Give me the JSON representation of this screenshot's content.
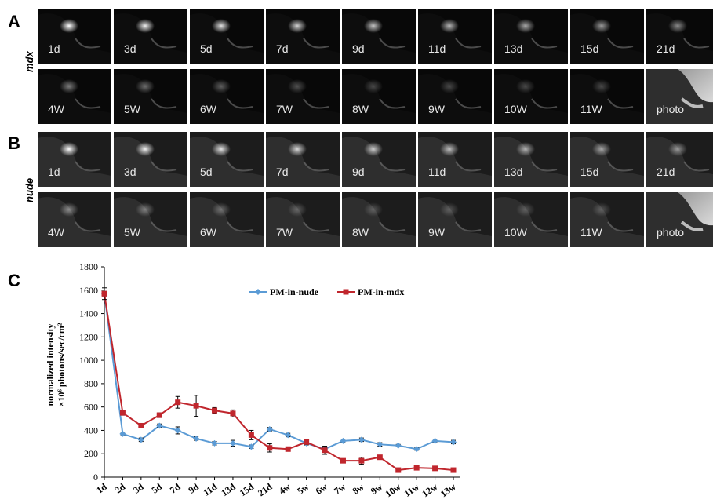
{
  "panels": {
    "a": {
      "letter": "A",
      "label": "mdx",
      "row1": [
        "1d",
        "3d",
        "5d",
        "7d",
        "9d",
        "11d",
        "13d",
        "15d",
        "21d"
      ],
      "row2": [
        "4W",
        "5W",
        "6W",
        "7W",
        "8W",
        "9W",
        "10W",
        "11W",
        "photo"
      ]
    },
    "b": {
      "letter": "B",
      "label": "nude",
      "row1": [
        "1d",
        "3d",
        "5d",
        "7d",
        "9d",
        "11d",
        "13d",
        "15d",
        "21d"
      ],
      "row2": [
        "4W",
        "5W",
        "6W",
        "7W",
        "8W",
        "9W",
        "10W",
        "11W",
        "photo"
      ]
    },
    "c": {
      "letter": "C"
    }
  },
  "chart_data": {
    "type": "line",
    "title": "",
    "xlabel": "",
    "ylabel_line1": "normalized intensity",
    "ylabel_line2": "×10⁶ photons/sec/cm²",
    "ylim": [
      0,
      1800
    ],
    "yticks": [
      0,
      200,
      400,
      600,
      800,
      1000,
      1200,
      1400,
      1600,
      1800
    ],
    "categories": [
      "1d",
      "2d",
      "3d",
      "5d",
      "7d",
      "9d",
      "11d",
      "13d",
      "15d",
      "21d",
      "4w",
      "5w",
      "6w",
      "7w",
      "8w",
      "9w",
      "10w",
      "11w",
      "12w",
      "13w"
    ],
    "legend_position": "top",
    "series": [
      {
        "name": "PM-in-nude",
        "color": "#5b9bd5",
        "marker": "diamond",
        "values": [
          1570,
          370,
          320,
          440,
          400,
          330,
          290,
          290,
          260,
          410,
          360,
          290,
          240,
          310,
          320,
          280,
          270,
          240,
          310,
          300
        ],
        "errors": [
          20,
          15,
          15,
          15,
          30,
          15,
          15,
          25,
          15,
          15,
          15,
          15,
          15,
          15,
          15,
          15,
          10,
          10,
          15,
          15
        ]
      },
      {
        "name": "PM-in-mdx",
        "color": "#c0262d",
        "marker": "square",
        "values": [
          1570,
          550,
          440,
          530,
          640,
          610,
          570,
          545,
          360,
          250,
          240,
          300,
          230,
          140,
          140,
          170,
          60,
          80,
          75,
          60
        ],
        "errors": [
          50,
          20,
          15,
          20,
          50,
          90,
          25,
          30,
          40,
          35,
          15,
          20,
          35,
          15,
          30,
          15,
          10,
          10,
          15,
          10
        ]
      }
    ]
  }
}
